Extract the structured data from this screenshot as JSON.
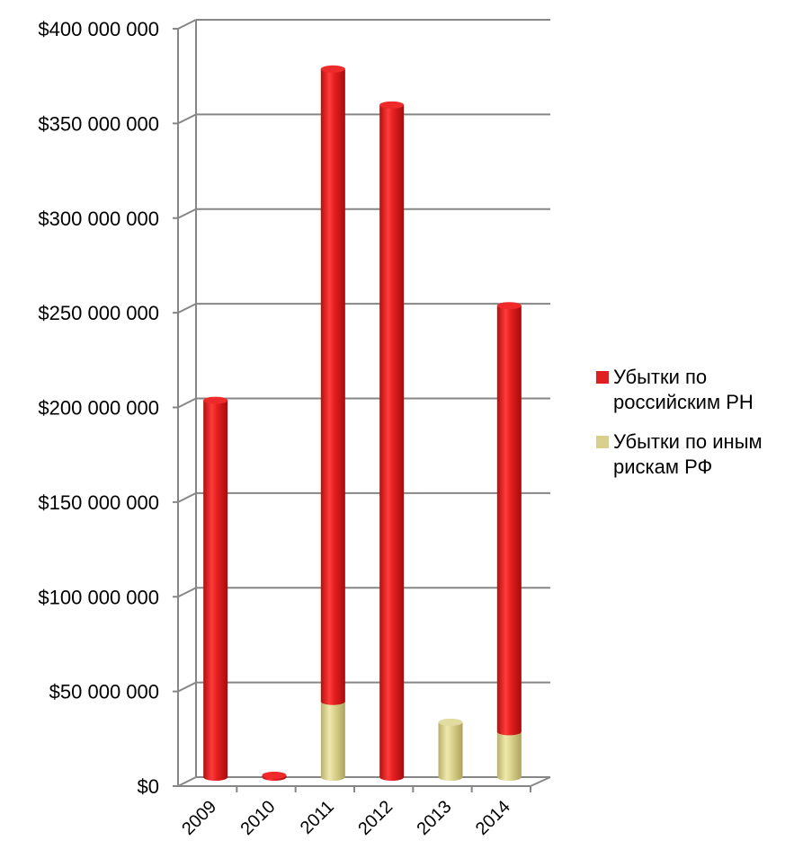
{
  "chart_data": {
    "type": "bar",
    "stacked": true,
    "categories": [
      "2009",
      "2010",
      "2011",
      "2012",
      "2013",
      "2014"
    ],
    "series": [
      {
        "name": "Убытки по российским РН",
        "name_lines": [
          "Убытки по",
          "российским РН"
        ],
        "color": "#e02020",
        "values": [
          199000000,
          1000000,
          334000000,
          355000000,
          0,
          225000000
        ]
      },
      {
        "name": "Убытки по иным рискам РФ",
        "name_lines": [
          "Убытки по иным",
          "рискам РФ"
        ],
        "color": "#d8d18e",
        "values": [
          0,
          0,
          40000000,
          0,
          29000000,
          24000000
        ]
      }
    ],
    "ylim": [
      0,
      400000000
    ],
    "yticks": [
      0,
      50000000,
      100000000,
      150000000,
      200000000,
      250000000,
      300000000,
      350000000,
      400000000
    ],
    "ytick_labels": [
      "$0",
      "$50 000 000",
      "$100 000 000",
      "$150 000 000",
      "$200 000 000",
      "$250 000 000",
      "$300 000 000",
      "$350 000 000",
      "$400 000 000"
    ],
    "grid": true,
    "legend": "right",
    "bar_shape": "3d-cylinder",
    "title": "",
    "xlabel": "",
    "ylabel": ""
  }
}
